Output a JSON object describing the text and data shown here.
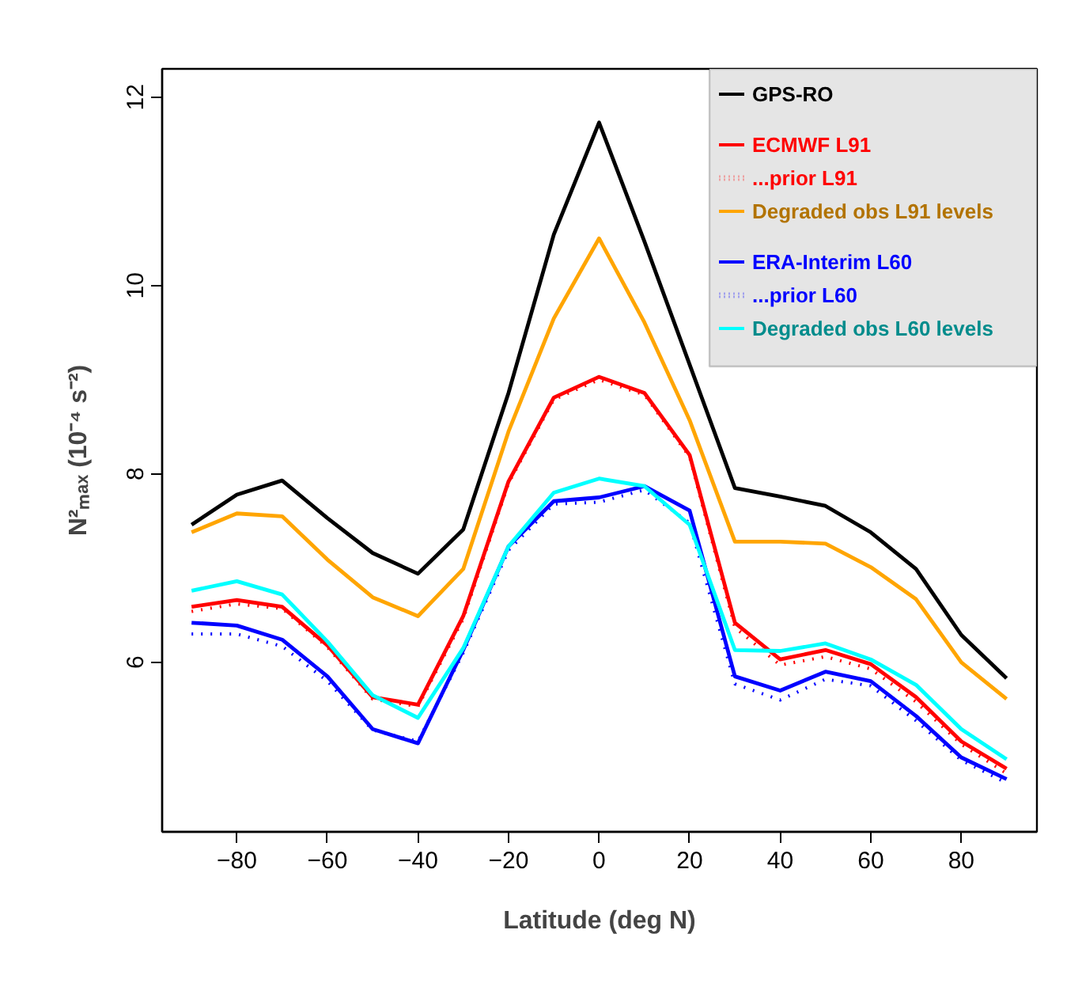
{
  "chart_data": {
    "type": "line",
    "xlabel": "Latitude (deg N)",
    "ylabel": "N²ₘₐₓ (10⁻⁴ s⁻²)",
    "x": [
      -90,
      -80,
      -70,
      -60,
      -50,
      -40,
      -30,
      -20,
      -10,
      0,
      10,
      20,
      30,
      40,
      50,
      60,
      70,
      80,
      90
    ],
    "xlim": [
      -96.5,
      96.7
    ],
    "ylim": [
      4.2,
      12.3
    ],
    "xticks": [
      -80,
      -60,
      -40,
      -20,
      0,
      20,
      40,
      60,
      80
    ],
    "yticks": [
      6,
      8,
      10,
      12
    ],
    "grid": false,
    "legend": "top right",
    "series": [
      {
        "name": "GPS-RO",
        "color": "#000000",
        "line_style": "solid",
        "values": [
          7.46,
          7.78,
          7.93,
          7.53,
          7.16,
          6.94,
          7.41,
          8.86,
          10.54,
          11.73,
          10.47,
          9.16,
          7.85,
          7.76,
          7.66,
          7.38,
          6.99,
          6.29,
          5.83
        ]
      },
      {
        "name": "ECMWF L91",
        "color": "#ff0000",
        "line_style": "solid",
        "values": [
          6.59,
          6.66,
          6.59,
          6.18,
          5.63,
          5.55,
          6.49,
          7.92,
          8.81,
          9.03,
          8.86,
          8.2,
          6.42,
          6.03,
          6.13,
          5.98,
          5.63,
          5.16,
          4.87
        ]
      },
      {
        "name": "...prior L91",
        "color": "#ff0000",
        "line_style": "dotted",
        "values": [
          6.54,
          6.62,
          6.57,
          6.16,
          5.61,
          5.53,
          6.46,
          7.9,
          8.79,
          9.0,
          8.84,
          8.18,
          6.37,
          5.97,
          6.06,
          5.93,
          5.58,
          5.13,
          4.82
        ]
      },
      {
        "name": "Degraded obs L91 levels",
        "color": "#ffa500",
        "line_style": "solid",
        "values": [
          7.38,
          7.58,
          7.55,
          7.09,
          6.69,
          6.49,
          6.99,
          8.45,
          9.65,
          10.5,
          9.61,
          8.57,
          7.28,
          7.28,
          7.26,
          7.01,
          6.67,
          6.0,
          5.61
        ]
      },
      {
        "name": "ERA-Interim L60",
        "color": "#0000ff",
        "line_style": "solid",
        "values": [
          6.42,
          6.39,
          6.24,
          5.85,
          5.29,
          5.14,
          6.13,
          7.23,
          7.71,
          7.75,
          7.87,
          7.61,
          5.85,
          5.7,
          5.9,
          5.8,
          5.43,
          4.99,
          4.76
        ]
      },
      {
        "name": "...prior L60",
        "color": "#0000ff",
        "line_style": "dotted",
        "values": [
          6.3,
          6.3,
          6.17,
          5.8,
          5.28,
          5.16,
          6.1,
          7.19,
          7.68,
          7.7,
          7.83,
          7.48,
          5.77,
          5.6,
          5.82,
          5.75,
          5.38,
          4.96,
          4.72
        ]
      },
      {
        "name": "Degraded obs L60 levels",
        "color": "#00ffff",
        "line_style": "solid",
        "values": [
          6.76,
          6.86,
          6.72,
          6.22,
          5.65,
          5.41,
          6.15,
          7.23,
          7.8,
          7.95,
          7.87,
          7.46,
          6.13,
          6.12,
          6.2,
          6.03,
          5.76,
          5.29,
          4.97
        ]
      }
    ]
  }
}
